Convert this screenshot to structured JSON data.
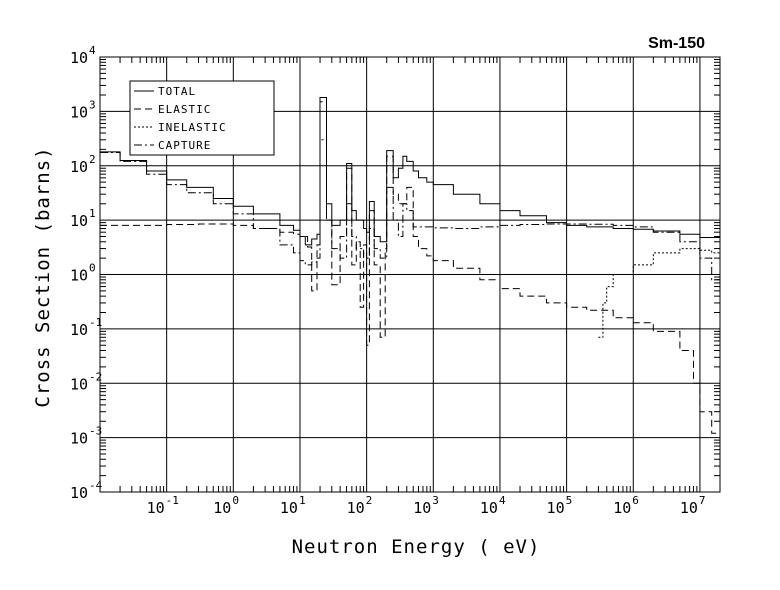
{
  "chart_data": {
    "type": "line",
    "title": "Sm-150",
    "xlabel": "Neutron Energy ( eV)",
    "ylabel": "Cross Section (barns)",
    "xscale": "log",
    "yscale": "log",
    "xlim": [
      0.01,
      20000000
    ],
    "ylim": [
      0.0001,
      10000
    ],
    "grid": true,
    "legend_position": "top-left",
    "x_ticks": [
      {
        "base": "10",
        "exp": "-1",
        "value": 0.1
      },
      {
        "base": "10",
        "exp": "0",
        "value": 1
      },
      {
        "base": "10",
        "exp": "1",
        "value": 10
      },
      {
        "base": "10",
        "exp": "2",
        "value": 100
      },
      {
        "base": "10",
        "exp": "3",
        "value": 1000
      },
      {
        "base": "10",
        "exp": "4",
        "value": 10000
      },
      {
        "base": "10",
        "exp": "5",
        "value": 100000
      },
      {
        "base": "10",
        "exp": "6",
        "value": 1000000
      },
      {
        "base": "10",
        "exp": "7",
        "value": 10000000
      }
    ],
    "y_ticks": [
      {
        "base": "10",
        "exp": "4",
        "value": 10000
      },
      {
        "base": "10",
        "exp": "3",
        "value": 1000
      },
      {
        "base": "10",
        "exp": "2",
        "value": 100
      },
      {
        "base": "10",
        "exp": "1",
        "value": 10
      },
      {
        "base": "10",
        "exp": "0",
        "value": 1
      },
      {
        "base": "10",
        "exp": "-1",
        "value": 0.1
      },
      {
        "base": "10",
        "exp": "-2",
        "value": 0.01
      },
      {
        "base": "10",
        "exp": "-3",
        "value": 0.001
      },
      {
        "base": "10",
        "exp": "-4",
        "value": 0.0001
      }
    ],
    "series": [
      {
        "name": "TOTAL",
        "style": "solid",
        "step": true,
        "points": [
          [
            0.01,
            180
          ],
          [
            0.02,
            125
          ],
          [
            0.05,
            80
          ],
          [
            0.1,
            55
          ],
          [
            0.2,
            40
          ],
          [
            0.5,
            25
          ],
          [
            1,
            18
          ],
          [
            2,
            13
          ],
          [
            5,
            8
          ],
          [
            8,
            6.5
          ],
          [
            10,
            5
          ],
          [
            12,
            3.5
          ],
          [
            15,
            4.5
          ],
          [
            18,
            5.5
          ],
          [
            20,
            1800
          ],
          [
            25,
            20
          ],
          [
            30,
            8
          ],
          [
            40,
            10
          ],
          [
            50,
            110
          ],
          [
            60,
            15
          ],
          [
            70,
            10
          ],
          [
            90,
            7
          ],
          [
            100,
            6
          ],
          [
            110,
            22
          ],
          [
            130,
            5
          ],
          [
            160,
            4
          ],
          [
            190,
            4
          ],
          [
            200,
            190
          ],
          [
            250,
            60
          ],
          [
            300,
            90
          ],
          [
            350,
            150
          ],
          [
            400,
            120
          ],
          [
            500,
            80
          ],
          [
            600,
            60
          ],
          [
            800,
            50
          ],
          [
            1000,
            45
          ],
          [
            2000,
            30
          ],
          [
            5000,
            20
          ],
          [
            10000,
            15
          ],
          [
            20000,
            12
          ],
          [
            50000,
            9
          ],
          [
            100000,
            8
          ],
          [
            200000,
            7.5
          ],
          [
            500000,
            7
          ],
          [
            1000000,
            6.8
          ],
          [
            2000000,
            6.3
          ],
          [
            5000000,
            5.5
          ],
          [
            10000000,
            4.8
          ],
          [
            20000000,
            5.2
          ]
        ]
      },
      {
        "name": "ELASTIC",
        "style": "dashed",
        "step": true,
        "points": [
          [
            0.01,
            8
          ],
          [
            0.03,
            8
          ],
          [
            0.1,
            8.3
          ],
          [
            0.3,
            8.5
          ],
          [
            1,
            8
          ],
          [
            2,
            7
          ],
          [
            5,
            6
          ],
          [
            8,
            5.5
          ],
          [
            10,
            5
          ],
          [
            13,
            3.2
          ],
          [
            15,
            0.5
          ],
          [
            18,
            3.5
          ],
          [
            20,
            1500
          ],
          [
            25,
            10
          ],
          [
            30,
            0.65
          ],
          [
            40,
            5
          ],
          [
            50,
            90
          ],
          [
            60,
            1.5
          ],
          [
            70,
            4
          ],
          [
            80,
            0.25
          ],
          [
            90,
            3.5
          ],
          [
            100,
            0.05
          ],
          [
            110,
            15
          ],
          [
            130,
            1.5
          ],
          [
            160,
            0.07
          ],
          [
            190,
            3
          ],
          [
            200,
            150
          ],
          [
            250,
            30
          ],
          [
            300,
            20
          ],
          [
            400,
            40
          ],
          [
            500,
            5
          ],
          [
            600,
            3
          ],
          [
            800,
            2.2
          ],
          [
            1000,
            1.8
          ],
          [
            2000,
            1.3
          ],
          [
            5000,
            0.8
          ],
          [
            10000,
            0.55
          ],
          [
            20000,
            0.4
          ],
          [
            50000,
            0.3
          ],
          [
            100000,
            0.25
          ],
          [
            200000,
            0.22
          ],
          [
            500000,
            0.16
          ],
          [
            1000000,
            0.13
          ],
          [
            2000000,
            0.09
          ],
          [
            5000000,
            0.04
          ],
          [
            8000000,
            0.01
          ],
          [
            10000000,
            0.003
          ],
          [
            15000000,
            0.0012
          ],
          [
            20000000,
            0.001
          ]
        ]
      },
      {
        "name": "INELASTIC",
        "style": "dotted",
        "step": true,
        "points": [
          [
            300000,
            0.07
          ],
          [
            350000,
            0.3
          ],
          [
            400000,
            0.6
          ],
          [
            500000,
            1
          ],
          [
            1000000,
            1.5
          ],
          [
            2000000,
            2.5
          ],
          [
            5000000,
            3
          ],
          [
            10000000,
            2.8
          ],
          [
            15000000,
            2.5
          ],
          [
            20000000,
            2.5
          ]
        ]
      },
      {
        "name": "CAPTURE",
        "style": "dashdot",
        "step": true,
        "points": [
          [
            0.01,
            175
          ],
          [
            0.02,
            120
          ],
          [
            0.05,
            70
          ],
          [
            0.1,
            45
          ],
          [
            0.2,
            32
          ],
          [
            0.5,
            20
          ],
          [
            1,
            13
          ],
          [
            2,
            7
          ],
          [
            5,
            3.5
          ],
          [
            8,
            2.5
          ],
          [
            10,
            1.8
          ],
          [
            12,
            1.5
          ],
          [
            15,
            1.7
          ],
          [
            18,
            2
          ],
          [
            20,
            300
          ],
          [
            25,
            10
          ],
          [
            30,
            3
          ],
          [
            40,
            2
          ],
          [
            50,
            20
          ],
          [
            60,
            5
          ],
          [
            70,
            3
          ],
          [
            90,
            2
          ],
          [
            100,
            2
          ],
          [
            110,
            7
          ],
          [
            130,
            3
          ],
          [
            160,
            2
          ],
          [
            190,
            2
          ],
          [
            200,
            40
          ],
          [
            250,
            10
          ],
          [
            300,
            5
          ],
          [
            350,
            20
          ],
          [
            400,
            15
          ],
          [
            500,
            7.5
          ],
          [
            1000,
            7.2
          ],
          [
            2000,
            7
          ],
          [
            5000,
            7.5
          ],
          [
            10000,
            8
          ],
          [
            20000,
            8.3
          ],
          [
            50000,
            8.5
          ],
          [
            100000,
            8.5
          ],
          [
            200000,
            8.4
          ],
          [
            500000,
            8
          ],
          [
            1000000,
            7.5
          ],
          [
            2000000,
            6
          ],
          [
            5000000,
            4
          ],
          [
            10000000,
            2
          ],
          [
            15000000,
            0.8
          ],
          [
            20000000,
            0.5
          ]
        ]
      }
    ]
  }
}
